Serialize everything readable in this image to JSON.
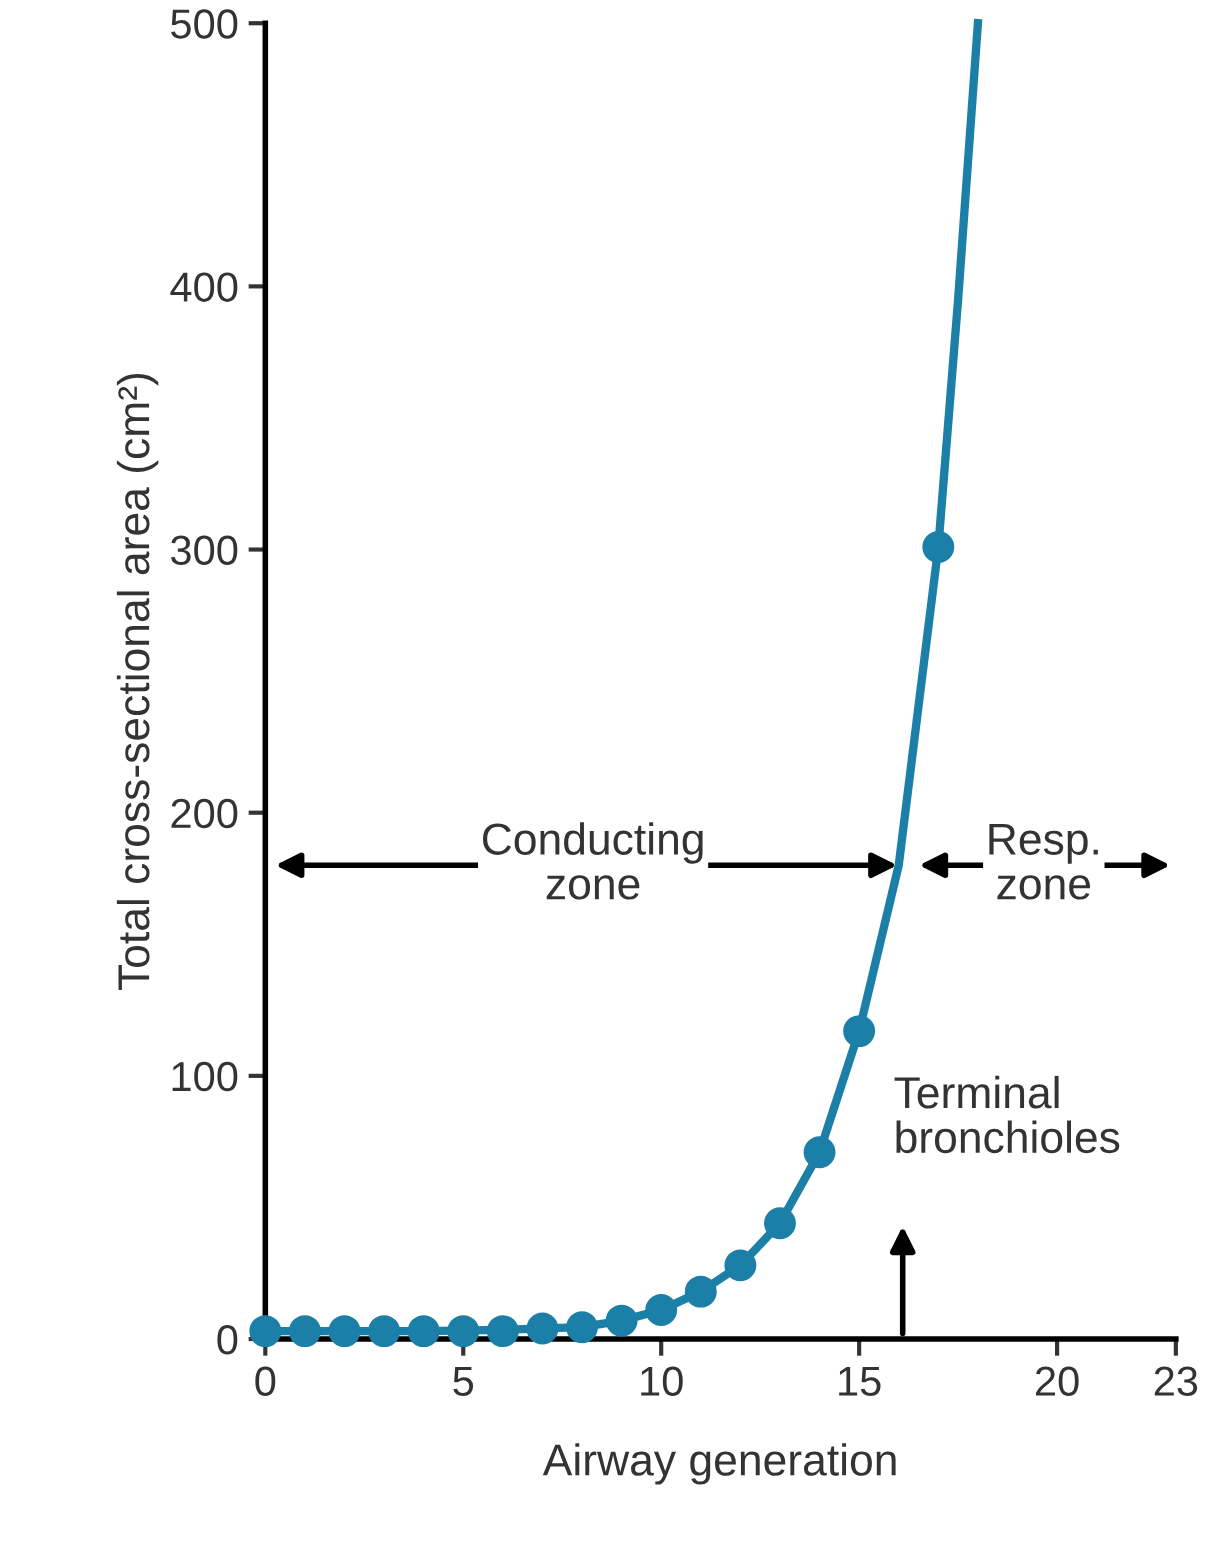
{
  "chart_data": {
    "type": "scatter",
    "xlabel": "Airway generation",
    "ylabel": "Total cross-sectional area (cm²)",
    "xlim": [
      0,
      23
    ],
    "ylim": [
      0,
      500
    ],
    "xticks": [
      0,
      5,
      10,
      15,
      20,
      23
    ],
    "yticks": [
      0,
      100,
      200,
      300,
      400,
      500
    ],
    "grid": false,
    "series": [
      {
        "type": "line",
        "color": "#1b7fa8",
        "marker": "none",
        "x": [
          0,
          2,
          4,
          6,
          8,
          9,
          10,
          11,
          12,
          13,
          14,
          15,
          16,
          17,
          17.5,
          18
        ],
        "values": [
          3,
          3,
          3,
          3.5,
          4.5,
          7,
          11,
          18,
          28,
          44,
          71,
          117,
          180,
          301,
          395,
          500
        ]
      },
      {
        "color": "#1b7fa8",
        "marker": "circle",
        "x": [
          0,
          1,
          2,
          3,
          4,
          5,
          6,
          7,
          8,
          9,
          10,
          11,
          12,
          13,
          14,
          15,
          17
        ],
        "values": [
          3,
          3,
          3,
          3,
          3,
          3,
          3,
          4,
          4.5,
          7,
          11,
          18,
          28,
          44,
          71,
          117,
          301
        ]
      }
    ],
    "annotations": [
      "Conducting\nzone",
      "Resp.\nzone",
      "Terminal\nbronchioles"
    ]
  }
}
